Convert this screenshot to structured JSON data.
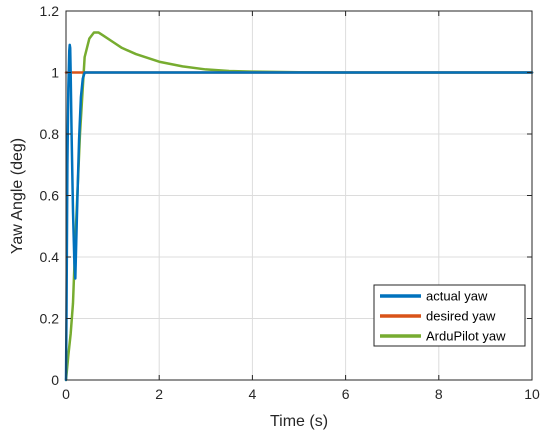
{
  "chart_data": {
    "type": "line",
    "xlabel": "Time (s)",
    "ylabel": "Yaw Angle (deg)",
    "xlim": [
      0,
      10
    ],
    "ylim": [
      0,
      1.2
    ],
    "xticks": [
      0,
      2,
      4,
      6,
      8,
      10
    ],
    "xtick_labels": [
      "0",
      "2",
      "4",
      "6",
      "8",
      "10"
    ],
    "yticks": [
      0,
      0.2,
      0.4,
      0.6,
      0.8,
      1,
      1.2
    ],
    "ytick_labels": [
      "0",
      "0.2",
      "0.4",
      "0.6",
      "0.8",
      "1",
      "1.2"
    ],
    "grid": true,
    "legend_position": "bottom-right",
    "series": [
      {
        "name": "actual yaw",
        "color": "#0072BD",
        "x": [
          0,
          0.01,
          0.02,
          0.03,
          0.05,
          0.07,
          0.08,
          0.09,
          0.1,
          0.12,
          0.15,
          0.18,
          0.2,
          0.22,
          0.25,
          0.28,
          0.32,
          0.36,
          0.4,
          0.45,
          0.5,
          1,
          2,
          4,
          6,
          8,
          10
        ],
        "y": [
          0,
          0.2,
          0.45,
          0.7,
          0.95,
          1.07,
          1.09,
          1.08,
          1.0,
          0.8,
          0.55,
          0.38,
          0.33,
          0.45,
          0.62,
          0.78,
          0.92,
          0.98,
          1.0,
          1.0,
          1.0,
          1.0,
          1.0,
          1.0,
          1.0,
          1.0,
          1.0
        ]
      },
      {
        "name": "desired yaw",
        "color": "#D95319",
        "x": [
          0,
          10
        ],
        "y": [
          1,
          1
        ]
      },
      {
        "name": "ArduPilot yaw",
        "color": "#77AC30",
        "x": [
          0,
          0.05,
          0.1,
          0.15,
          0.2,
          0.3,
          0.4,
          0.5,
          0.6,
          0.7,
          0.8,
          1.0,
          1.2,
          1.5,
          2.0,
          2.5,
          3.0,
          3.5,
          4.0,
          5.0,
          6.0,
          8.0,
          10.0
        ],
        "y": [
          0,
          0.08,
          0.15,
          0.25,
          0.45,
          0.8,
          1.05,
          1.11,
          1.13,
          1.13,
          1.12,
          1.1,
          1.08,
          1.06,
          1.035,
          1.02,
          1.01,
          1.005,
          1.003,
          1.001,
          1.0,
          1.0,
          1.0
        ]
      }
    ]
  }
}
